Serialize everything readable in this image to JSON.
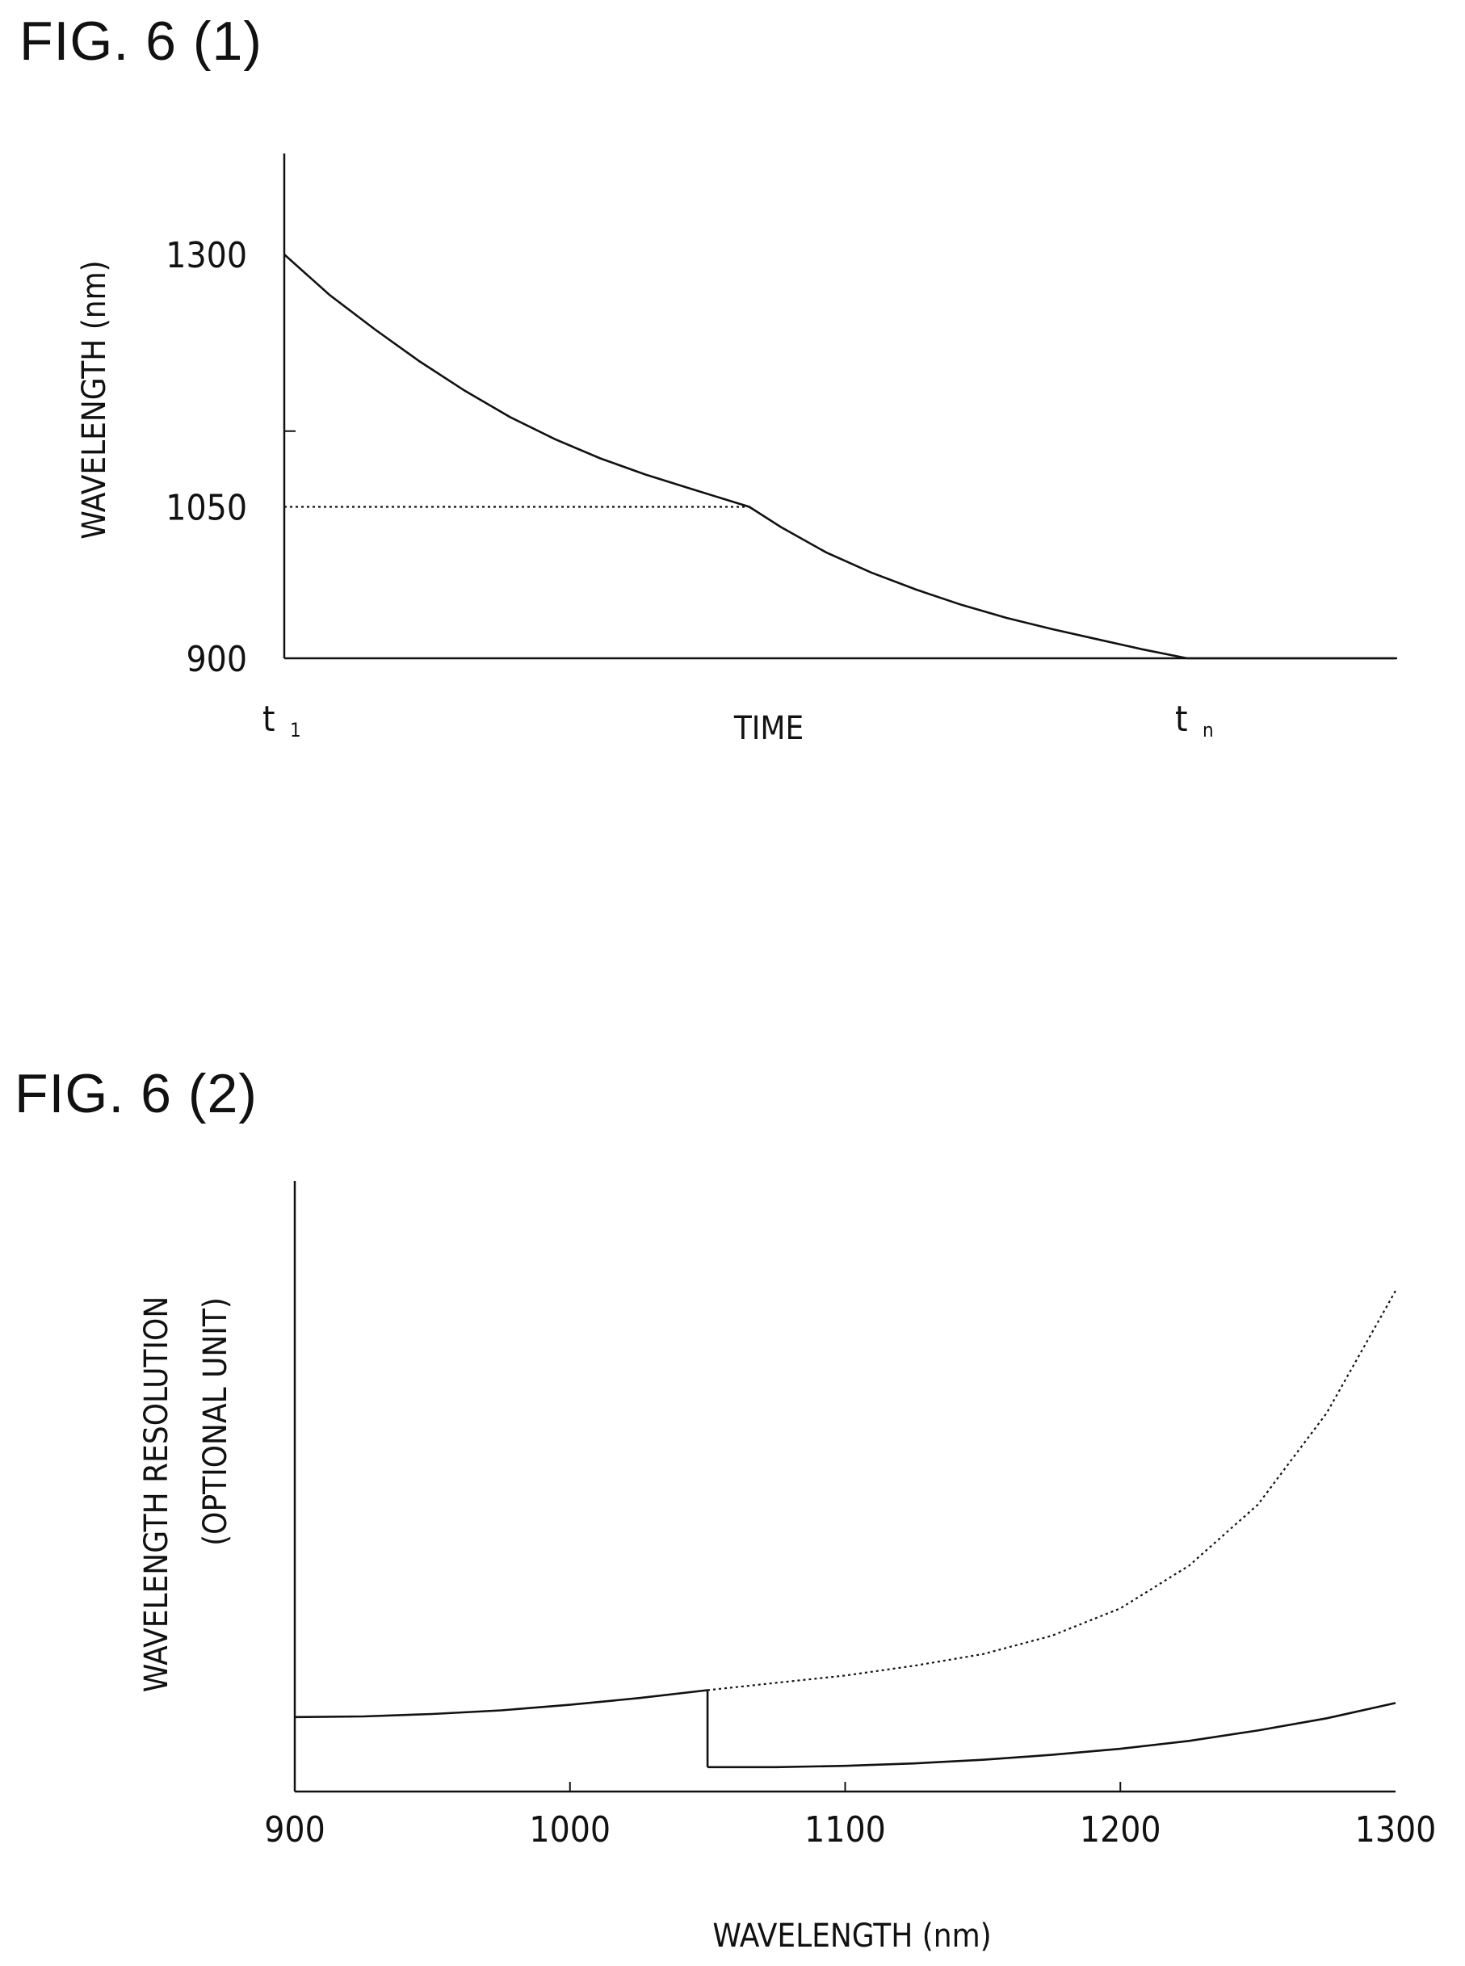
{
  "figures": [
    {
      "title": "FIG. 6 (1)"
    },
    {
      "title": "FIG. 6 (2)"
    }
  ],
  "chart_data": [
    {
      "type": "line",
      "title": "FIG. 6 (1)",
      "xlabel": "TIME",
      "ylabel": "WAVELENGTH (nm)",
      "x_tick_labels": [
        {
          "main": "t",
          "sub": "1"
        },
        {
          "main": "t",
          "sub": "n"
        }
      ],
      "yticks": [
        900,
        1050,
        1300
      ],
      "ylim": [
        900,
        1400
      ],
      "xlim": [
        0,
        1.23
      ],
      "series": [
        {
          "style": "solid",
          "x": [
            0,
            0.05,
            0.1,
            0.15,
            0.2,
            0.25,
            0.3,
            0.35,
            0.4,
            0.45,
            0.515,
            0.55,
            0.6,
            0.65,
            0.7,
            0.75,
            0.8,
            0.85,
            0.9,
            0.95,
            1.0
          ],
          "y": [
            1300,
            1260,
            1226,
            1194,
            1165,
            1139,
            1117,
            1098,
            1082,
            1068,
            1050,
            1030,
            1005,
            985,
            968,
            953,
            940,
            929,
            919,
            909,
            900
          ]
        },
        {
          "style": "solid",
          "x": [
            1.0,
            1.23
          ],
          "y": [
            900,
            900
          ]
        },
        {
          "style": "dotted",
          "x": [
            0,
            0.515
          ],
          "y": [
            1050,
            1050
          ]
        }
      ]
    },
    {
      "type": "line",
      "title": "FIG. 6 (2)",
      "xlabel": "WAVELENGTH (nm)",
      "ylabel": "WAVELENGTH RESOLUTION",
      "ylabel2": "(OPTIONAL UNIT)",
      "xticks": [
        900,
        1000,
        1100,
        1200,
        1300
      ],
      "xlim": [
        900,
        1300
      ],
      "ylim": [
        0,
        1
      ],
      "series": [
        {
          "style": "solid",
          "x": [
            900,
            925,
            950,
            975,
            1000,
            1025,
            1050
          ],
          "y": [
            0.122,
            0.123,
            0.127,
            0.133,
            0.142,
            0.153,
            0.166
          ]
        },
        {
          "style": "dotted",
          "x": [
            1050,
            1075,
            1100,
            1125,
            1150,
            1175,
            1200,
            1225,
            1250,
            1275,
            1290,
            1300
          ],
          "y": [
            0.166,
            0.178,
            0.19,
            0.206,
            0.225,
            0.255,
            0.3,
            0.37,
            0.47,
            0.62,
            0.74,
            0.82
          ]
        },
        {
          "style": "solid",
          "x": [
            1050,
            1050
          ],
          "y": [
            0.166,
            0.04
          ]
        },
        {
          "style": "solid",
          "x": [
            1050,
            1075,
            1100,
            1125,
            1150,
            1175,
            1200,
            1225,
            1250,
            1275,
            1300
          ],
          "y": [
            0.04,
            0.04,
            0.042,
            0.046,
            0.052,
            0.06,
            0.07,
            0.083,
            0.1,
            0.12,
            0.145
          ]
        }
      ]
    }
  ]
}
